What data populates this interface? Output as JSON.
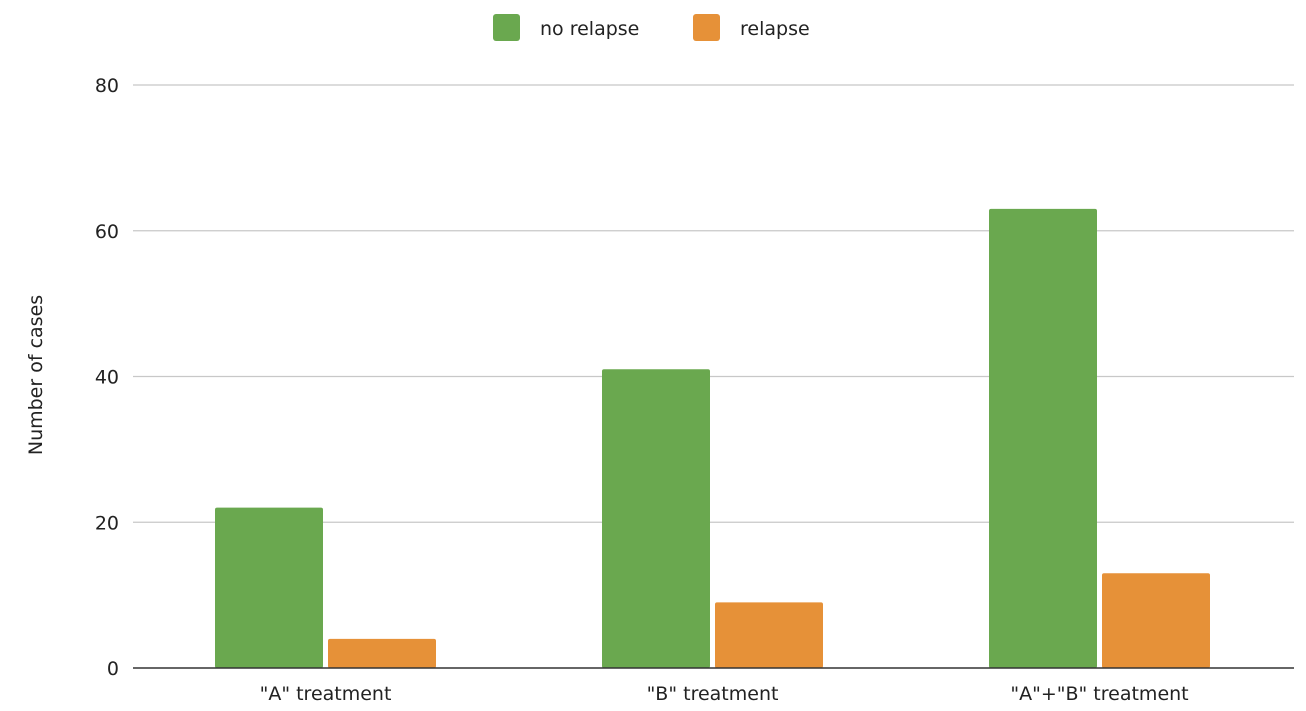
{
  "chart_data": {
    "type": "bar",
    "title": "",
    "xlabel": "",
    "ylabel": "Number of cases",
    "categories": [
      "\"A\" treatment",
      "\"B\" treatment",
      "\"A\"+\"B\" treatment"
    ],
    "series": [
      {
        "name": "no relapse",
        "values": [
          22,
          41,
          63
        ],
        "color": "#6aa84f"
      },
      {
        "name": "relapse",
        "values": [
          4,
          9,
          13
        ],
        "color": "#e69138"
      }
    ],
    "ylim": [
      0,
      80
    ],
    "yticks": [
      0,
      20,
      40,
      60,
      80
    ],
    "grid": true,
    "legend_position": "top-center"
  }
}
